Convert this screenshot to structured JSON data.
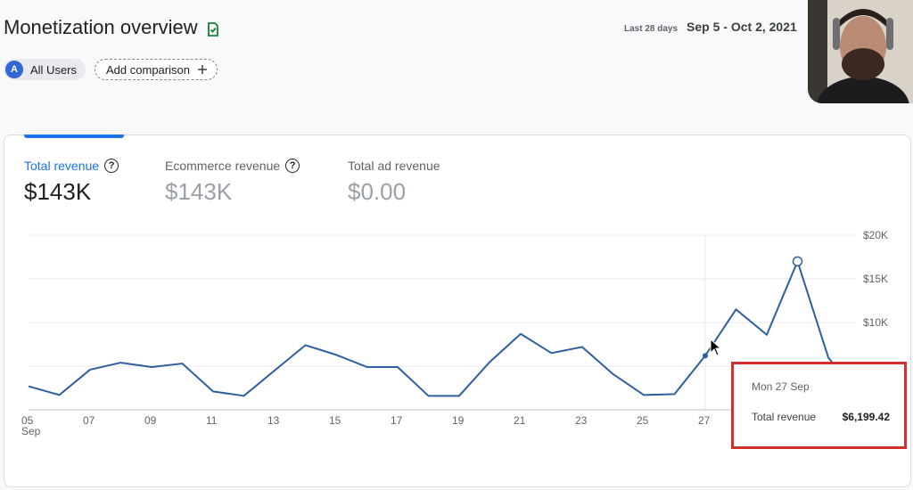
{
  "header": {
    "title": "Monetization overview",
    "date_period": "Last 28 days",
    "date_range": "Sep 5 - Oct 2, 2021"
  },
  "comparison": {
    "all_users_avatar": "A",
    "all_users_label": "All Users",
    "add_label": "Add comparison",
    "add_icon": "plus-icon"
  },
  "metrics": [
    {
      "label": "Total revenue",
      "value": "$143K",
      "help": "?"
    },
    {
      "label": "Ecommerce revenue",
      "value": "$143K",
      "help": "?"
    },
    {
      "label": "Total ad revenue",
      "value": "$0.00"
    }
  ],
  "colors": {
    "accent": "#1a73e8",
    "line": "#2f5f9e",
    "highlight_border": "#d32f2f"
  },
  "chart_data": {
    "type": "line",
    "series": [
      {
        "values": [
          2700,
          1700,
          4600,
          5400,
          4900,
          5300,
          2100,
          1600,
          4500,
          7400,
          6300,
          4900,
          4900,
          1600,
          1600,
          5500,
          8700,
          6500,
          7200,
          4100,
          1700,
          1800,
          6199.42,
          11500,
          8600,
          17000,
          6000,
          1500
        ]
      }
    ],
    "x_tick_labels": [
      "05",
      "07",
      "09",
      "11",
      "13",
      "15",
      "17",
      "19",
      "21",
      "23",
      "25",
      "27"
    ],
    "x_sub_label": "Sep",
    "y_tick_labels": [
      "$20K",
      "$15K",
      "$10K"
    ],
    "ylim": [
      0,
      20000
    ],
    "grid": true
  },
  "tooltip": {
    "date": "Mon 27 Sep",
    "label": "Total revenue",
    "value": "$6,199.42"
  }
}
